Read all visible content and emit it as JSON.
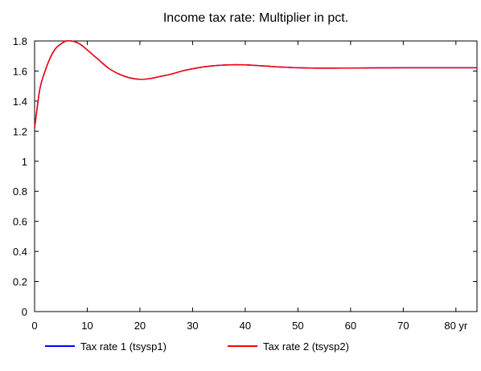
{
  "chart_data": {
    "type": "line",
    "title": "Income tax rate: Multiplier in pct.",
    "xlabel": "",
    "ylabel": "",
    "x_unit_label": "yr",
    "xlim": [
      0,
      84
    ],
    "ylim": [
      0,
      1.8
    ],
    "x_ticks": [
      0,
      10,
      20,
      30,
      40,
      50,
      60,
      70,
      80
    ],
    "x_tick_labels": [
      "0",
      "10",
      "20",
      "30",
      "40",
      "50",
      "60",
      "70",
      "80 yr"
    ],
    "y_ticks": [
      0,
      0.2,
      0.4,
      0.6,
      0.8,
      1,
      1.2,
      1.4,
      1.6,
      1.8
    ],
    "y_tick_labels": [
      "0",
      "0.2",
      "0.4",
      "0.6",
      "0.8",
      "1",
      "1.2",
      "1.4",
      "1.6",
      "1.8"
    ],
    "grid": false,
    "legend_position": "bottom",
    "series": [
      {
        "name": "Tax rate 1 (tsysp1)",
        "color": "#0000ff",
        "x": [
          0,
          1,
          2,
          3,
          4,
          5,
          6,
          7,
          8,
          9,
          10,
          12,
          14,
          16,
          18,
          20,
          22,
          24,
          26,
          28,
          30,
          32,
          34,
          36,
          38,
          40,
          42,
          44,
          46,
          48,
          50,
          55,
          60,
          65,
          70,
          75,
          80,
          84
        ],
        "y": [
          1.22,
          1.48,
          1.6,
          1.69,
          1.75,
          1.78,
          1.8,
          1.8,
          1.79,
          1.77,
          1.74,
          1.68,
          1.62,
          1.58,
          1.555,
          1.545,
          1.55,
          1.565,
          1.58,
          1.6,
          1.615,
          1.627,
          1.635,
          1.64,
          1.642,
          1.641,
          1.637,
          1.633,
          1.628,
          1.625,
          1.622,
          1.619,
          1.62,
          1.621,
          1.622,
          1.622,
          1.622,
          1.622
        ]
      },
      {
        "name": "Tax rate 2 (tsysp2)",
        "color": "#ff0000",
        "x": [
          0,
          1,
          2,
          3,
          4,
          5,
          6,
          7,
          8,
          9,
          10,
          12,
          14,
          16,
          18,
          20,
          22,
          24,
          26,
          28,
          30,
          32,
          34,
          36,
          38,
          40,
          42,
          44,
          46,
          48,
          50,
          55,
          60,
          65,
          70,
          75,
          80,
          84
        ],
        "y": [
          1.22,
          1.48,
          1.6,
          1.69,
          1.75,
          1.78,
          1.8,
          1.8,
          1.79,
          1.77,
          1.74,
          1.68,
          1.62,
          1.58,
          1.555,
          1.545,
          1.55,
          1.565,
          1.58,
          1.6,
          1.615,
          1.627,
          1.635,
          1.64,
          1.642,
          1.641,
          1.637,
          1.633,
          1.628,
          1.625,
          1.622,
          1.619,
          1.62,
          1.621,
          1.622,
          1.622,
          1.622,
          1.622
        ]
      }
    ]
  }
}
